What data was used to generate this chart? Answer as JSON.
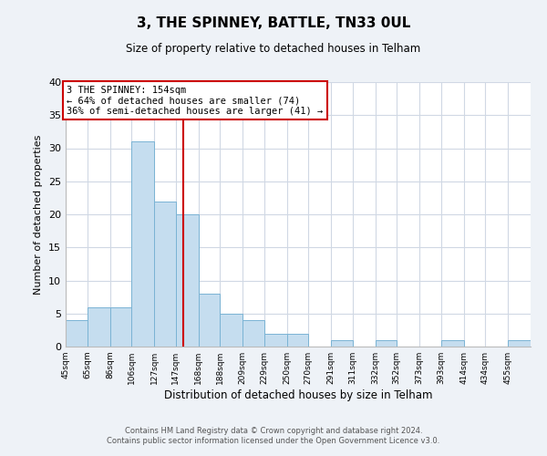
{
  "title": "3, THE SPINNEY, BATTLE, TN33 0UL",
  "subtitle": "Size of property relative to detached houses in Telham",
  "xlabel": "Distribution of detached houses by size in Telham",
  "ylabel": "Number of detached properties",
  "footer_line1": "Contains HM Land Registry data © Crown copyright and database right 2024.",
  "footer_line2": "Contains public sector information licensed under the Open Government Licence v3.0.",
  "bin_labels": [
    "45sqm",
    "65sqm",
    "86sqm",
    "106sqm",
    "127sqm",
    "147sqm",
    "168sqm",
    "188sqm",
    "209sqm",
    "229sqm",
    "250sqm",
    "270sqm",
    "291sqm",
    "311sqm",
    "332sqm",
    "352sqm",
    "373sqm",
    "393sqm",
    "414sqm",
    "434sqm",
    "455sqm"
  ],
  "bin_edges": [
    45,
    65,
    86,
    106,
    127,
    147,
    168,
    188,
    209,
    229,
    250,
    270,
    291,
    311,
    332,
    352,
    373,
    393,
    414,
    434,
    455
  ],
  "bar_heights": [
    4,
    6,
    6,
    31,
    22,
    20,
    8,
    5,
    4,
    2,
    2,
    0,
    1,
    0,
    1,
    0,
    0,
    1,
    0,
    0,
    1
  ],
  "bar_color": "#c5ddef",
  "bar_edge_color": "#7ab3d4",
  "vline_x": 154,
  "vline_color": "#cc0000",
  "annotation_text": "3 THE SPINNEY: 154sqm\n← 64% of detached houses are smaller (74)\n36% of semi-detached houses are larger (41) →",
  "annotation_box_color": "#ffffff",
  "annotation_box_edge": "#cc0000",
  "ylim": [
    0,
    40
  ],
  "yticks": [
    0,
    5,
    10,
    15,
    20,
    25,
    30,
    35,
    40
  ],
  "background_color": "#eef2f7",
  "plot_bg_color": "#ffffff",
  "grid_color": "#d0d8e4"
}
